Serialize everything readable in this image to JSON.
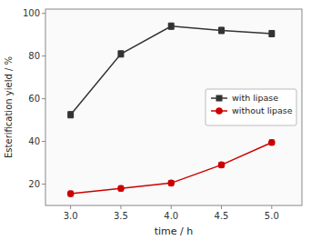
{
  "chart_data": {
    "type": "line",
    "x": [
      3.0,
      3.5,
      4.0,
      4.5,
      5.0
    ],
    "series": [
      {
        "name": "with lipase",
        "color": "#333333",
        "marker": "square",
        "line_style": "solid",
        "values": [
          52.5,
          81.0,
          94.0,
          92.0,
          90.5
        ],
        "errors": [
          1.5,
          1.5,
          1.5,
          1.5,
          1.5
        ]
      },
      {
        "name": "without lipase",
        "color": "#cc0000",
        "marker": "circle",
        "line_style": "solid",
        "values": [
          15.5,
          18.0,
          20.5,
          29.0,
          39.5
        ],
        "errors": [
          1.2,
          1.2,
          1.2,
          1.2,
          1.2
        ]
      }
    ],
    "x_label": "time / h",
    "y_label": "Esterification yield / %",
    "xlim": [
      2.75,
      5.3
    ],
    "ylim": [
      10,
      102
    ],
    "xticks": [
      {
        "value": 3.0,
        "label": "3.0"
      },
      3.5,
      {
        "value": 4.0,
        "label": "4.0"
      },
      4.5,
      {
        "value": 5.0,
        "label": "5.0"
      }
    ],
    "yticks": [
      20,
      40,
      60,
      80,
      100
    ],
    "grid": false,
    "legend": "right"
  }
}
